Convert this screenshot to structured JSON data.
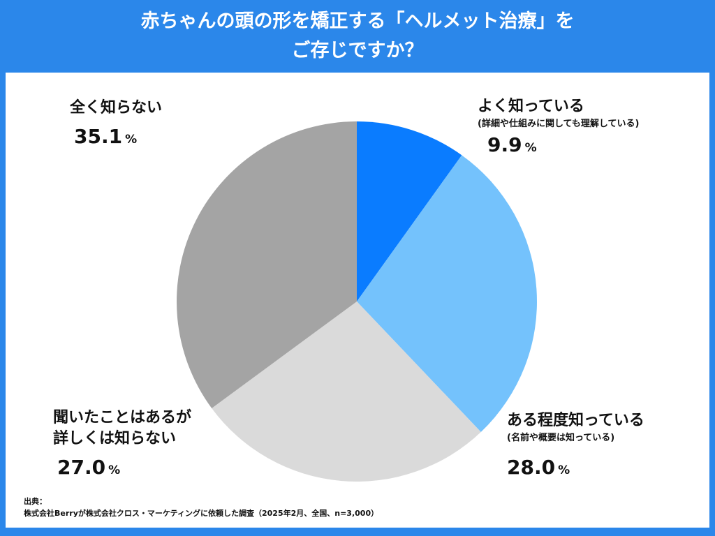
{
  "header": {
    "title_line1": "赤ちゃんの頭の形を矯正する「ヘルメット治療」を",
    "title_line2": "ご存じですか？"
  },
  "chart_data": {
    "type": "pie",
    "slices": [
      {
        "label": "よく知っている",
        "note": "(詳細や仕組みに関しても理解している)",
        "value": 9.9,
        "color": "#0a7cff"
      },
      {
        "label": "ある程度知っている",
        "note": "(名前や概要は知っている)",
        "value": 28.0,
        "color": "#74c2fc"
      },
      {
        "label": "聞いたことはあるが詳しくは知らない",
        "label_line1": "聞いたことはあるが",
        "label_line2": "詳しくは知らない",
        "value": 27.0,
        "color": "#dadada"
      },
      {
        "label": "全く知らない",
        "value": 35.1,
        "color": "#a4a4a4"
      }
    ],
    "unit": "%"
  },
  "labels": {
    "s0": {
      "name": "よく知っている",
      "sub": "(詳細や仕組みに関しても理解している)",
      "pct": "9.9",
      "unit": "%"
    },
    "s1": {
      "name": "ある程度知っている",
      "sub": "(名前や概要は知っている)",
      "pct": "28.0",
      "unit": "%"
    },
    "s2": {
      "name1": "聞いたことはあるが",
      "name2": "詳しくは知らない",
      "pct": "27.0",
      "unit": "%"
    },
    "s3": {
      "name": "全く知らない",
      "pct": "35.1",
      "unit": "%"
    }
  },
  "source": {
    "heading": "出典：",
    "text": "株式会社Berryが株式会社クロス・マーケティングに依頼した調査（2025年2月、全国、n=3,000）"
  }
}
